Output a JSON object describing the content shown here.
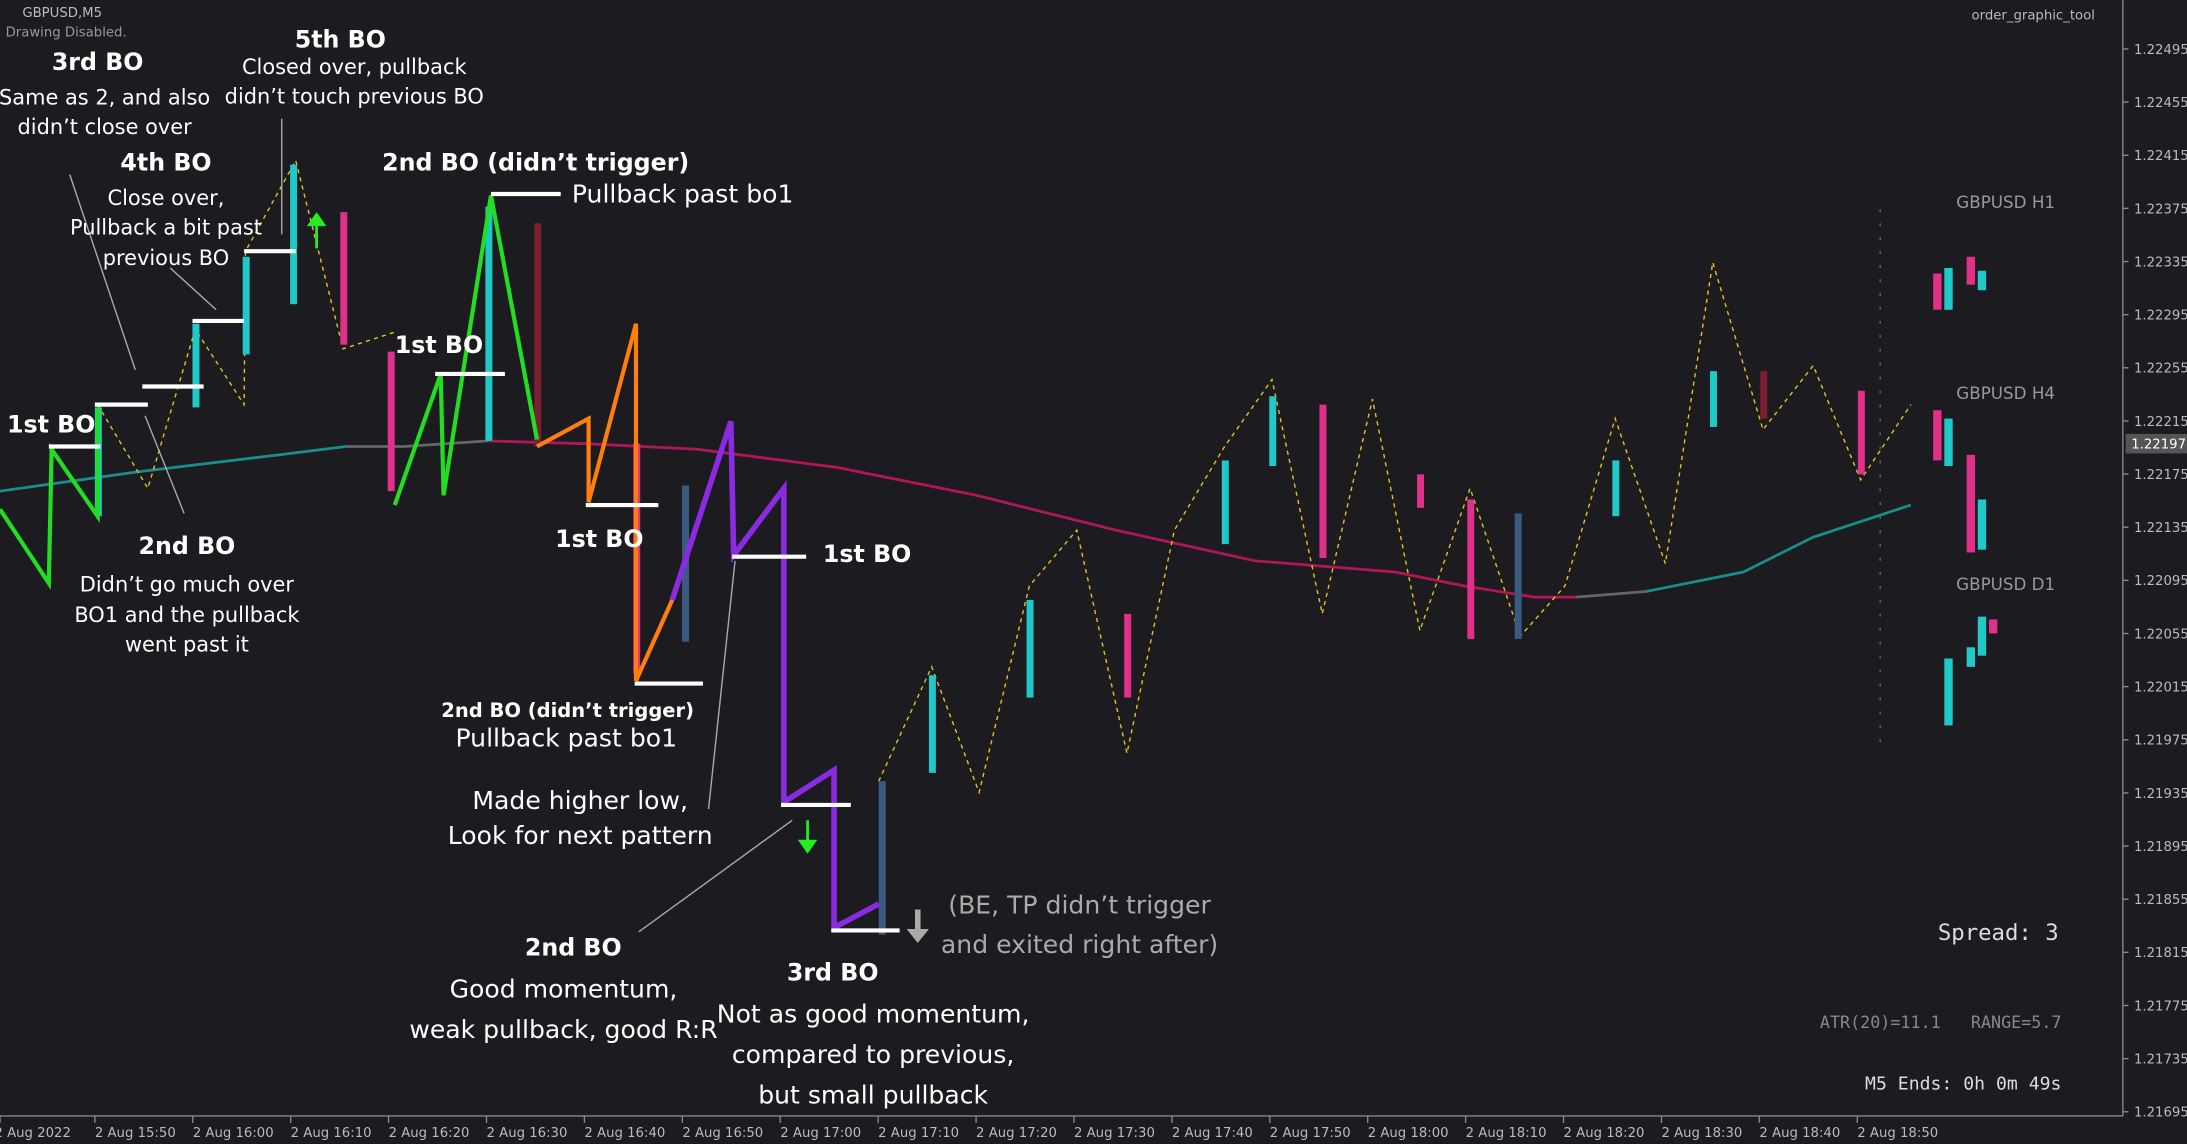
{
  "header": {
    "symbol": "GBPUSD,M5",
    "status": "Drawing Disabled.",
    "tool": "order_graphic_tool"
  },
  "price_axis": {
    "labels": [
      "1.22495",
      "1.22455",
      "1.22415",
      "1.22375",
      "1.22335",
      "1.22295",
      "1.22255",
      "1.22215",
      "1.22175",
      "1.22135",
      "1.22095",
      "1.22055",
      "1.22015",
      "1.21975",
      "1.21935",
      "1.21895",
      "1.21855",
      "1.21815",
      "1.21775",
      "1.21735",
      "1.21695"
    ],
    "current": "1.22197"
  },
  "time_axis": {
    "labels": [
      "2 Aug 2022",
      "2 Aug 15:50",
      "2 Aug 16:00",
      "2 Aug 16:10",
      "2 Aug 16:20",
      "2 Aug 16:30",
      "2 Aug 16:40",
      "2 Aug 16:50",
      "2 Aug 17:00",
      "2 Aug 17:10",
      "2 Aug 17:20",
      "2 Aug 17:30",
      "2 Aug 17:40",
      "2 Aug 17:50",
      "2 Aug 18:00",
      "2 Aug 18:10",
      "2 Aug 18:20",
      "2 Aug 18:30",
      "2 Aug 18:40",
      "2 Aug 18:50"
    ]
  },
  "annotations": [
    {
      "title": "3rd BO",
      "lines": [
        "Same as 2, and also",
        "didn’t close over"
      ]
    },
    {
      "title": "5th BO",
      "lines": [
        "Closed over, pullback",
        "didn’t touch previous BO"
      ]
    },
    {
      "title": "4th BO",
      "lines": [
        "Close over,",
        "Pullback a bit past",
        "previous BO"
      ]
    },
    {
      "title": "2nd BO (didn’t trigger)",
      "lines": [
        "Pullback past bo1"
      ]
    },
    {
      "title": "1st BO"
    },
    {
      "title": "1st BO"
    },
    {
      "title": "2nd BO",
      "lines": [
        "Didn’t go much over",
        "BO1 and the pullback",
        "went past it"
      ]
    },
    {
      "title": "1st BO"
    },
    {
      "title": "1st BO"
    },
    {
      "title": "2nd BO (didn’t trigger)",
      "lines": [
        "Pullback past bo1"
      ]
    },
    {
      "lines": [
        "Made higher low,",
        "Look for next pattern"
      ]
    },
    {
      "title": "2nd BO",
      "lines": [
        "Good momentum,",
        "weak pullback, good R:R"
      ]
    },
    {
      "title": "3rd BO",
      "lines": [
        "Not as good momentum,",
        "compared to previous,",
        "but small pullback"
      ]
    },
    {
      "lines": [
        "(BE, TP didn’t trigger",
        "and exited right after)"
      ]
    }
  ],
  "mini_charts": [
    "GBPUSD H1",
    "GBPUSD H4",
    "GBPUSD D1"
  ],
  "info": {
    "spread": "Spread: 3",
    "atr": "ATR(20)=11.1   RANGE=5.7",
    "ends": "M5 Ends: 0h 0m 49s"
  }
}
